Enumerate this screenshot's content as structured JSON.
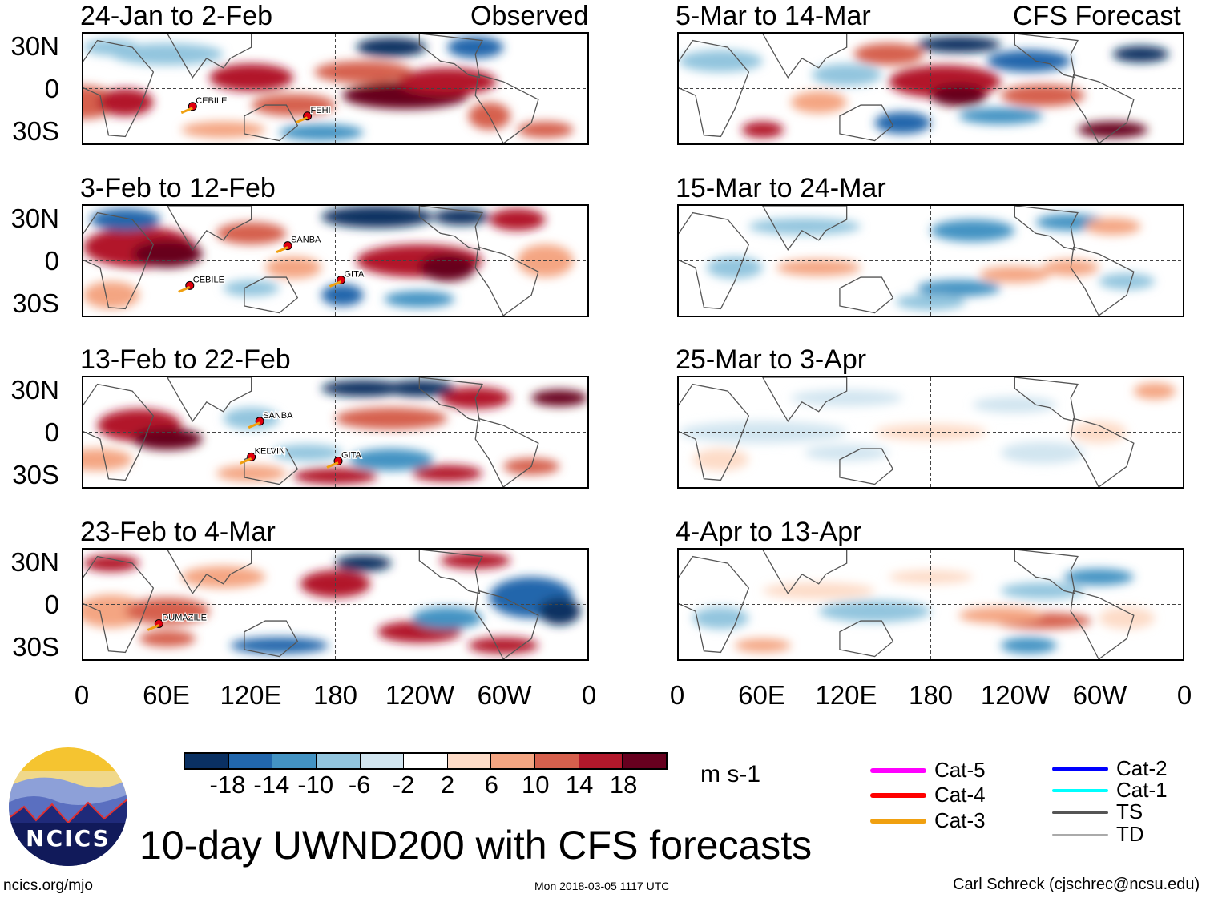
{
  "left_column": {
    "header_right": "Observed",
    "panels": [
      {
        "title": "24-Jan to 2-Feb",
        "storms": [
          {
            "name": "CEBILE",
            "lon": 78,
            "lat": -13
          },
          {
            "name": "FEHI",
            "lon": 160,
            "lat": -20
          }
        ]
      },
      {
        "title": "3-Feb to 12-Feb",
        "storms": [
          {
            "name": "SANBA",
            "lon": 146,
            "lat": 11
          },
          {
            "name": "CEBILE",
            "lon": 76,
            "lat": -18
          },
          {
            "name": "GITA",
            "lon": 184,
            "lat": -14
          }
        ]
      },
      {
        "title": "13-Feb to 22-Feb",
        "storms": [
          {
            "name": "SANBA",
            "lon": 126,
            "lat": 8
          },
          {
            "name": "KELVIN",
            "lon": 120,
            "lat": -18
          },
          {
            "name": "GITA",
            "lon": 182,
            "lat": -21
          }
        ]
      },
      {
        "title": "23-Feb to 4-Mar",
        "storms": [
          {
            "name": "DUMAZILE",
            "lon": 54,
            "lat": -14
          }
        ]
      }
    ]
  },
  "right_column": {
    "header_right": "CFS Forecast",
    "panels": [
      {
        "title": "5-Mar to 14-Mar"
      },
      {
        "title": "15-Mar to 24-Mar"
      },
      {
        "title": "25-Mar to 3-Apr"
      },
      {
        "title": "4-Apr to 13-Apr"
      }
    ]
  },
  "lat_labels": [
    "30N",
    "0",
    "30S"
  ],
  "lon_labels": [
    "0",
    "60E",
    "120E",
    "180",
    "120W",
    "60W",
    "0"
  ],
  "colorbar": {
    "colors": [
      "#0a3062",
      "#2166ac",
      "#4393c3",
      "#92c5de",
      "#d1e5f0",
      "#ffffff",
      "#fddbc7",
      "#f4a582",
      "#d6604d",
      "#b2182b",
      "#67001f"
    ],
    "labels": [
      "-18",
      "-14",
      "-10",
      "-6",
      "-2",
      "2",
      "6",
      "10",
      "14",
      "18"
    ],
    "units": "m s-1"
  },
  "legend": [
    {
      "label": "Cat-5",
      "color": "#ff00ff"
    },
    {
      "label": "Cat-4",
      "color": "#ff0000"
    },
    {
      "label": "Cat-3",
      "color": "#f0a010"
    },
    {
      "label": "Cat-2",
      "color": "#0000ff"
    },
    {
      "label": "Cat-1",
      "color": "#00ffff"
    },
    {
      "label": "TS",
      "color": "#555555"
    },
    {
      "label": "TD",
      "color": "#aaaaaa"
    }
  ],
  "footer": {
    "title": "10-day UWND200 with CFS forecasts",
    "logo_text": "NCICS",
    "site": "ncics.org/mjo",
    "timestamp": "Mon 2018-03-05 1117 UTC",
    "credit": "Carl Schreck (cjschrec@ncsu.edu)"
  }
}
